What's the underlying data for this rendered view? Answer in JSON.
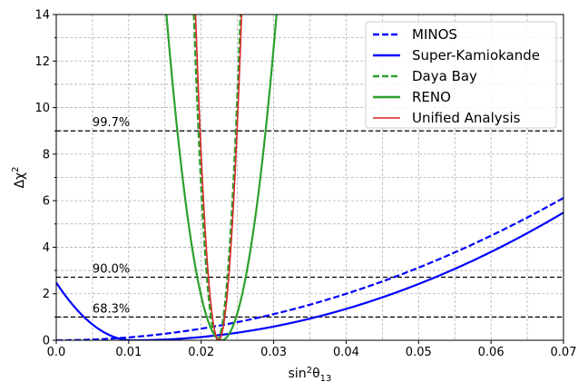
{
  "chart_data": {
    "type": "line",
    "xlabel": "sin²θ₁₃",
    "ylabel": "Δχ²",
    "xlim": [
      0.0,
      0.07
    ],
    "ylim": [
      0,
      14
    ],
    "xticks": [
      0.0,
      0.01,
      0.02,
      0.03,
      0.04,
      0.05,
      0.06,
      0.07
    ],
    "xtick_labels": [
      "0.0",
      "0.01",
      "0.02",
      "0.03",
      "0.04",
      "0.05",
      "0.06",
      "0.07"
    ],
    "yticks": [
      0,
      2,
      4,
      6,
      8,
      10,
      12,
      14
    ],
    "ytick_labels": [
      "0",
      "2",
      "4",
      "6",
      "8",
      "10",
      "12",
      "14"
    ],
    "grid": true,
    "grid_style": "dashed",
    "legend_position": "top-right",
    "series": [
      {
        "name": "MINOS",
        "color": "#0000ff",
        "dash": "dashed",
        "model": "parabola",
        "min_x": 0.0,
        "min_y": 0.0,
        "width": 0.0283
      },
      {
        "name": "Super-Kamiokande",
        "color": "#0000ff",
        "dash": "solid",
        "model": "parabola",
        "min_x": 0.0105,
        "min_y": 0.0,
        "width": 0.00667,
        "width_right": 0.0254
      },
      {
        "name": "Daya Bay",
        "color": "#2ca02c",
        "dash": "dashed",
        "model": "parabola",
        "min_x": 0.0222,
        "min_y": 0.0,
        "width": 0.00086
      },
      {
        "name": "RENO",
        "color": "#2ca02c",
        "dash": "solid",
        "model": "parabola",
        "min_x": 0.0228,
        "min_y": 0.0,
        "width": 0.00203
      },
      {
        "name": "Unified Analysis",
        "color": "#d62728",
        "dash": "solid",
        "model": "parabola",
        "min_x": 0.0224,
        "min_y": 0.0,
        "width": 0.00085
      }
    ],
    "thresholds": [
      {
        "y": 1.0,
        "label": "68.3%"
      },
      {
        "y": 2.71,
        "label": "90.0%"
      },
      {
        "y": 9.0,
        "label": "99.7%"
      }
    ]
  }
}
